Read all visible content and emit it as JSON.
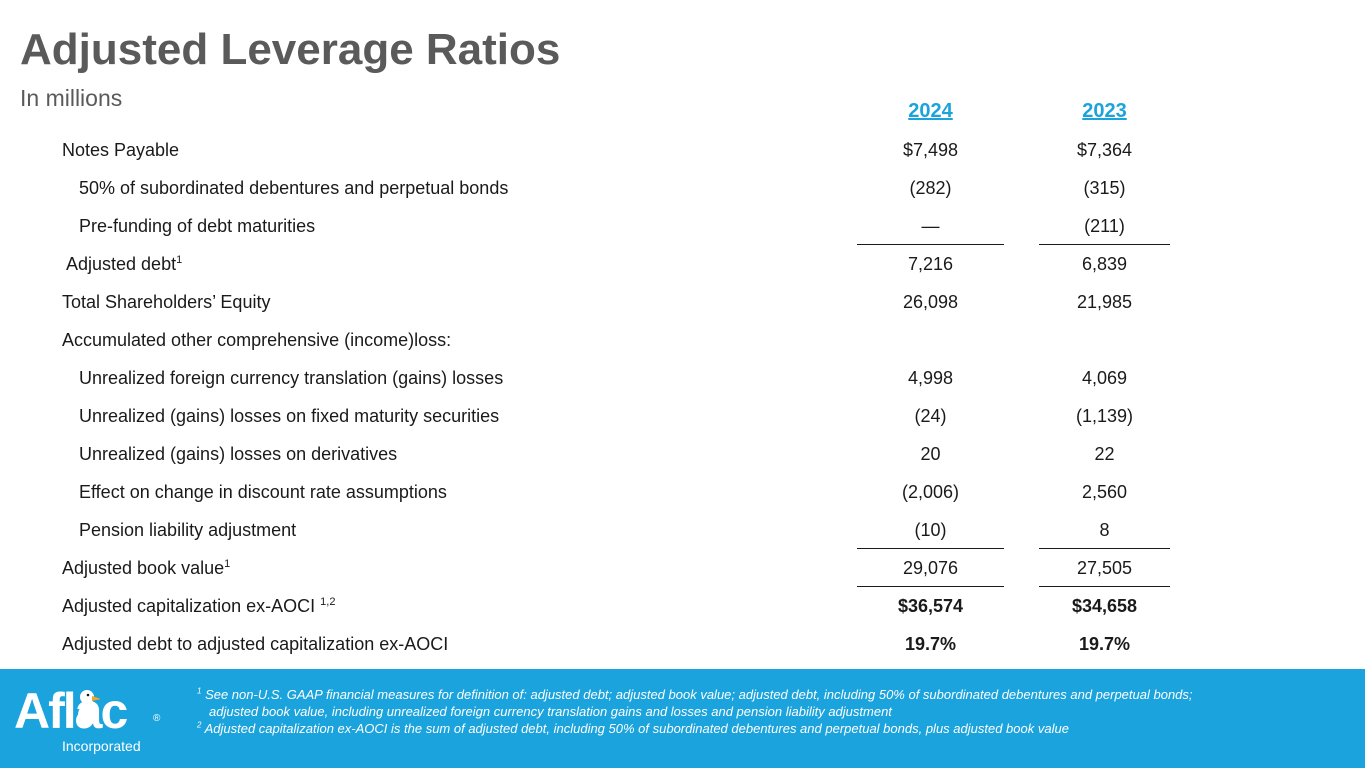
{
  "title": "Adjusted Leverage Ratios",
  "subtitle": "In millions",
  "columns": [
    "2024",
    "2023"
  ],
  "rows": [
    {
      "label": "Notes Payable",
      "sup": "",
      "a": "$7,498",
      "b": "$7,364"
    },
    {
      "label": "50% of subordinated debentures and perpetual bonds",
      "sup": "",
      "a": "(282)",
      "b": "(315)"
    },
    {
      "label": "Pre-funding of debt maturities",
      "sup": "",
      "a": "—",
      "b": "(211)"
    },
    {
      "label": "Adjusted debt",
      "sup": "1",
      "a": "7,216",
      "b": "6,839"
    },
    {
      "label": "Total Shareholders’ Equity",
      "sup": "",
      "a": "26,098",
      "b": "21,985"
    },
    {
      "label": "Accumulated other comprehensive (income)loss:",
      "sup": "",
      "a": "",
      "b": ""
    },
    {
      "label": "Unrealized foreign currency translation (gains) losses",
      "sup": "",
      "a": "4,998",
      "b": "4,069"
    },
    {
      "label": "Unrealized (gains) losses on fixed maturity securities",
      "sup": "",
      "a": "(24)",
      "b": "(1,139)"
    },
    {
      "label": "Unrealized (gains) losses on derivatives",
      "sup": "",
      "a": "20",
      "b": "22"
    },
    {
      "label": "Effect on change in discount rate assumptions",
      "sup": "",
      "a": "(2,006)",
      "b": "2,560"
    },
    {
      "label": "Pension liability adjustment",
      "sup": "",
      "a": "(10)",
      "b": "8"
    },
    {
      "label": "Adjusted book value",
      "sup": "1",
      "a": "29,076",
      "b": "27,505"
    },
    {
      "label": "Adjusted capitalization ex-AOCI ",
      "sup": "1,2",
      "a": "$36,574",
      "b": "$34,658"
    },
    {
      "label": "Adjusted debt to adjusted capitalization ex-AOCI",
      "sup": "",
      "a": "19.7%",
      "b": "19.7%"
    }
  ],
  "footer": {
    "logo_text": "Aflac",
    "logo_reg": "®",
    "logo_sub": "Incorporated",
    "notes": [
      {
        "num": "1",
        "text": " See non-U.S. GAAP financial measures for definition of: adjusted debt; adjusted book value; adjusted debt, including 50% of subordinated debentures and perpetual bonds;"
      },
      {
        "num": "",
        "text": "adjusted book value, including unrealized foreign currency translation gains and losses and pension liability adjustment"
      },
      {
        "num": "2",
        "text": " Adjusted capitalization ex-AOCI is the sum of adjusted debt, including 50% of subordinated debentures and perpetual bonds, plus adjusted book value"
      }
    ]
  },
  "colors": {
    "accent": "#1aa3dc",
    "title": "#5a5a5a"
  }
}
